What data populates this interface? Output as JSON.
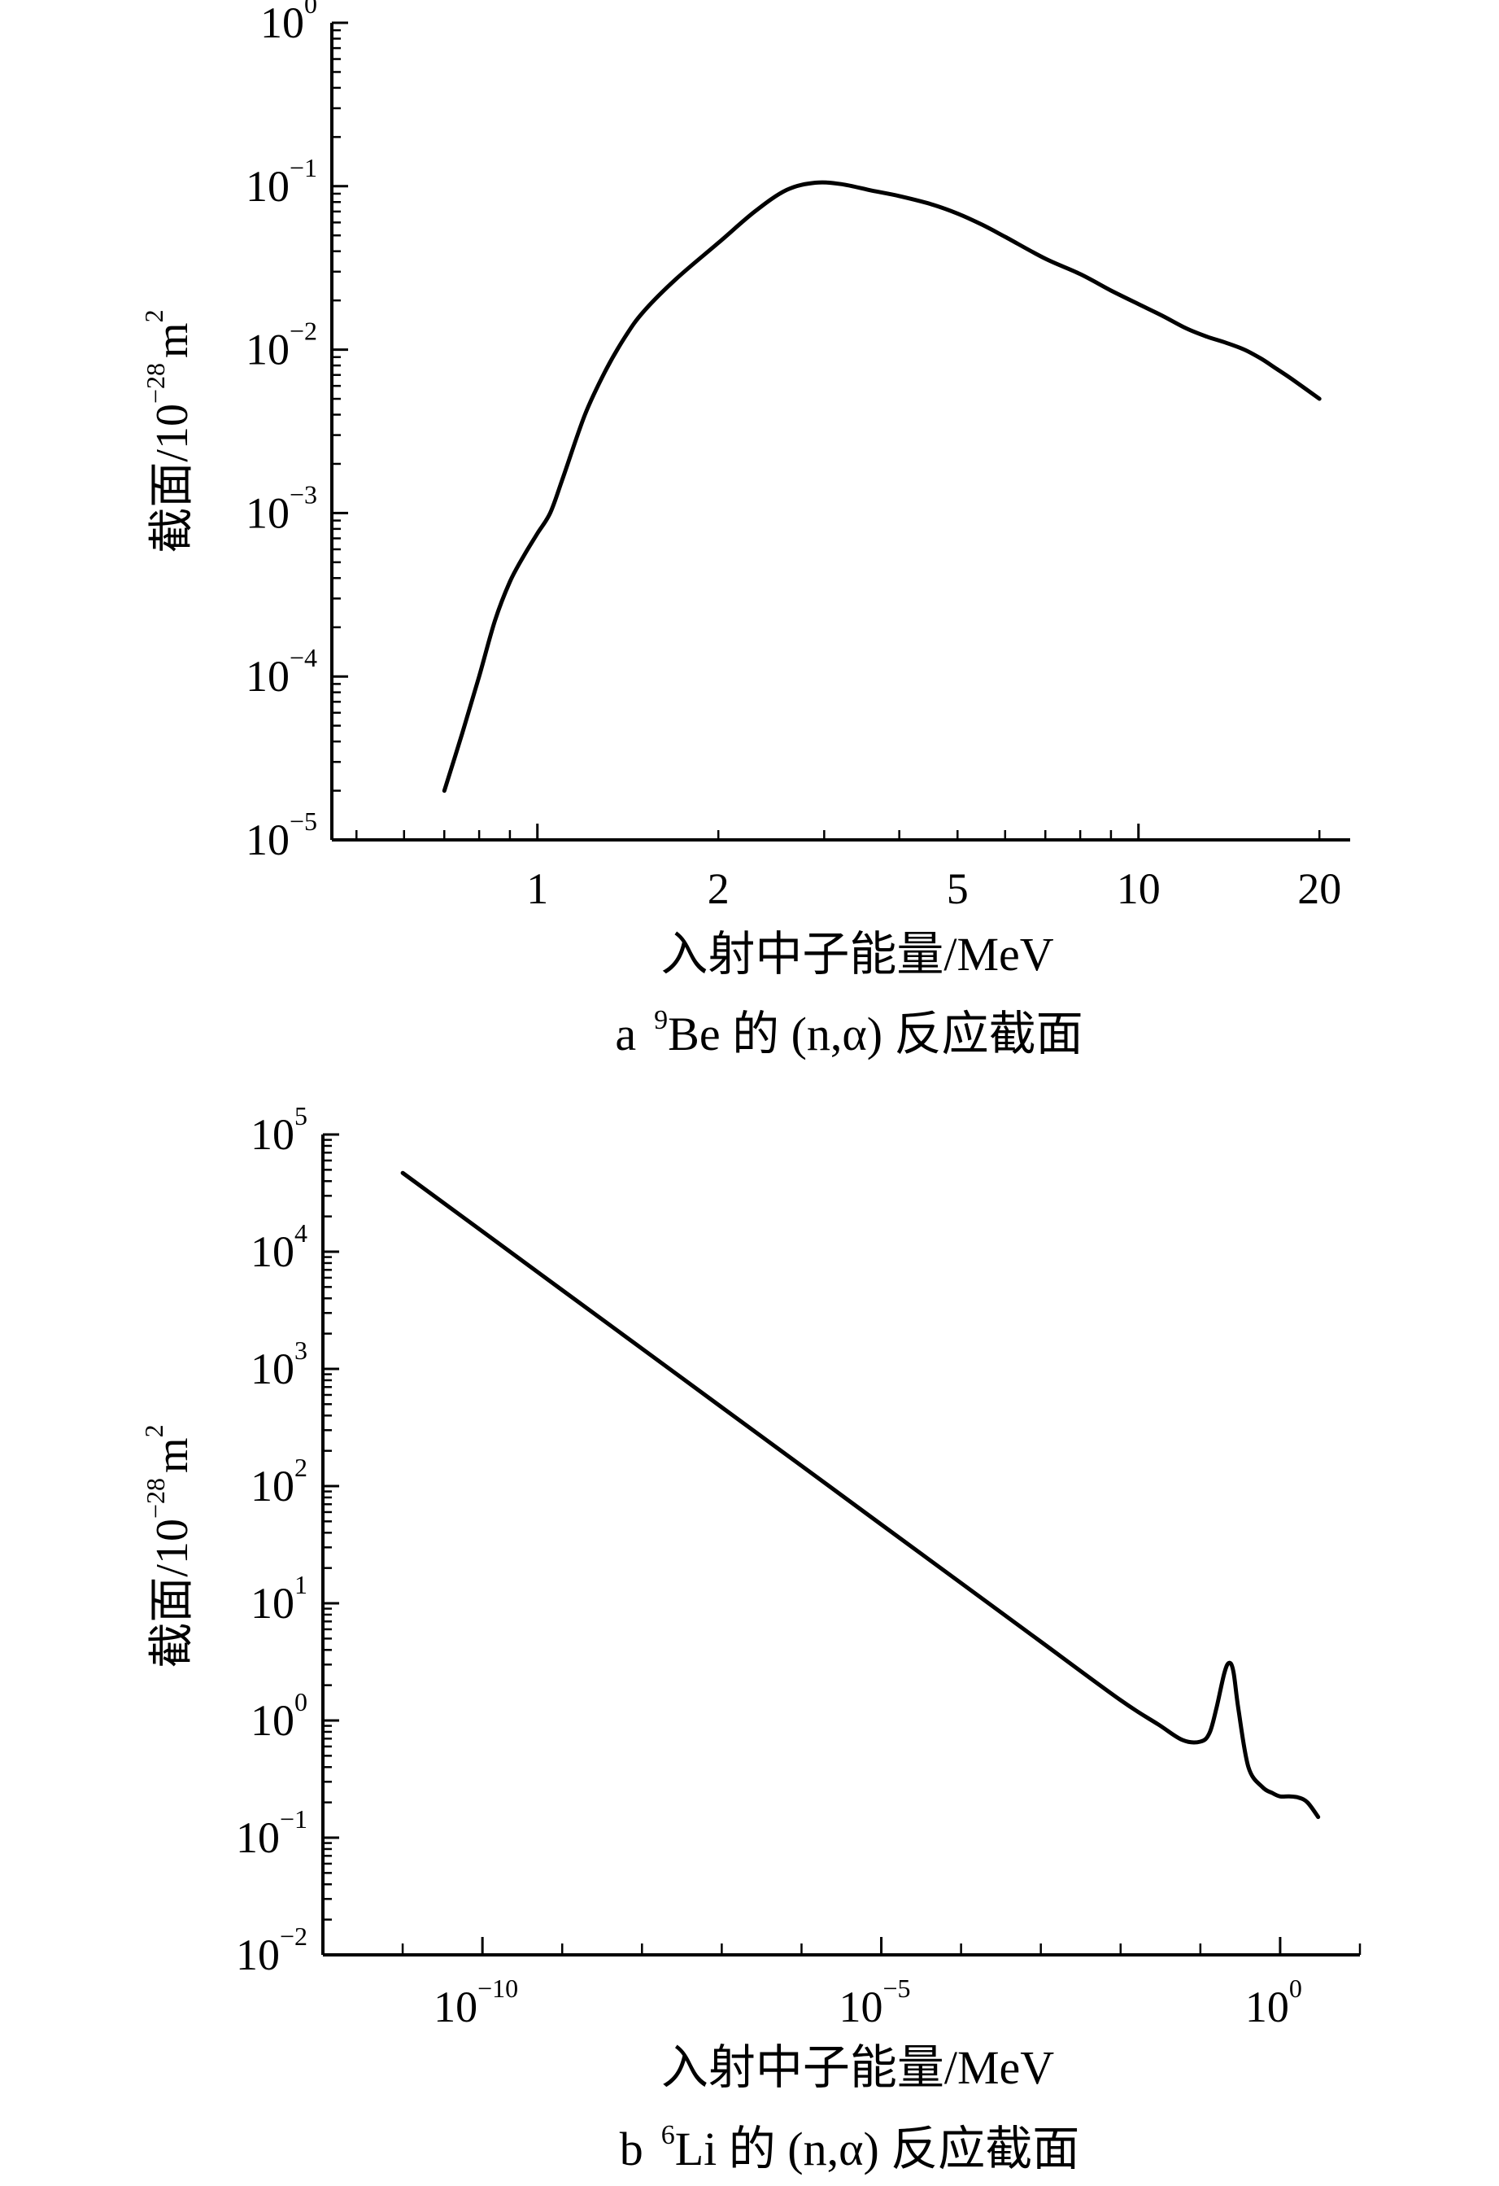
{
  "chart_data": [
    {
      "panel": "a",
      "type": "line",
      "caption_letter": "a",
      "caption_sup": "9",
      "caption_text": "Be 的 (n,α) 反应截面",
      "xlabel": "入射中子能量/MeV",
      "ylabel_main": "截面/10",
      "ylabel_exp": "−28",
      "ylabel_unit": "m",
      "ylabel_unit_exp": "2",
      "x_scale": "log",
      "y_scale": "log",
      "xlim": [
        0.455,
        22.5
      ],
      "ylim": [
        1e-05,
        1
      ],
      "grid": false,
      "x_tick_labels": [
        {
          "value": 1,
          "label": "1"
        },
        {
          "value": 2,
          "label": "2"
        },
        {
          "value": 5,
          "label": "5"
        },
        {
          "value": 10,
          "label": "10"
        },
        {
          "value": 20,
          "label": "20"
        }
      ],
      "y_tick_labels": [
        {
          "value": 1,
          "base": "10",
          "exp": "0"
        },
        {
          "value": 0.1,
          "base": "10",
          "exp": "−1"
        },
        {
          "value": 0.01,
          "base": "10",
          "exp": "−2"
        },
        {
          "value": 0.001,
          "base": "10",
          "exp": "−3"
        },
        {
          "value": 0.0001,
          "base": "10",
          "exp": "−4"
        },
        {
          "value": 1e-05,
          "base": "10",
          "exp": "−5"
        }
      ],
      "series": [
        {
          "x": [
            0.7,
            0.75,
            0.8,
            0.85,
            0.9,
            0.95,
            1.0,
            1.05,
            1.1,
            1.2,
            1.3,
            1.4,
            1.5,
            1.7,
            2.0,
            2.3,
            2.6,
            2.9,
            3.2,
            3.6,
            4.0,
            4.5,
            5.0,
            5.5,
            6.0,
            7.0,
            8.0,
            9.0,
            10.0,
            11.0,
            12.0,
            13.0,
            14.0,
            15.0,
            16.0,
            17.0,
            18.0,
            20.0
          ],
          "y": [
            2e-05,
            4.5e-05,
            0.0001,
            0.00022,
            0.00038,
            0.00055,
            0.00075,
            0.001,
            0.0016,
            0.004,
            0.0075,
            0.012,
            0.017,
            0.027,
            0.045,
            0.07,
            0.095,
            0.105,
            0.103,
            0.094,
            0.087,
            0.078,
            0.068,
            0.058,
            0.049,
            0.036,
            0.029,
            0.023,
            0.019,
            0.016,
            0.0135,
            0.012,
            0.011,
            0.01,
            0.0088,
            0.0076,
            0.0066,
            0.005
          ]
        }
      ]
    },
    {
      "panel": "b",
      "type": "line",
      "caption_letter": "b",
      "caption_sup": "6",
      "caption_text": "Li 的 (n,α) 反应截面",
      "xlabel": "入射中子能量/MeV",
      "ylabel_main": "截面/10",
      "ylabel_exp": "−28",
      "ylabel_unit": "m",
      "ylabel_unit_exp": "2",
      "x_scale": "log",
      "y_scale": "log",
      "xlim": [
        1e-12,
        10
      ],
      "ylim": [
        0.01,
        100000
      ],
      "grid": false,
      "x_tick_labels": [
        {
          "value": 1e-10,
          "base": "10",
          "exp": "−10"
        },
        {
          "value": 1e-05,
          "base": "10",
          "exp": "−5"
        },
        {
          "value": 1,
          "base": "10",
          "exp": "0"
        }
      ],
      "y_tick_labels": [
        {
          "value": 100000,
          "base": "10",
          "exp": "5"
        },
        {
          "value": 10000,
          "base": "10",
          "exp": "4"
        },
        {
          "value": 1000,
          "base": "10",
          "exp": "3"
        },
        {
          "value": 100,
          "base": "10",
          "exp": "2"
        },
        {
          "value": 10,
          "base": "10",
          "exp": "1"
        },
        {
          "value": 1,
          "base": "10",
          "exp": "0"
        },
        {
          "value": 0.1,
          "base": "10",
          "exp": "−1"
        },
        {
          "value": 0.01,
          "base": "10",
          "exp": "−2"
        }
      ],
      "series": [
        {
          "x": [
            1e-11,
            1e-10,
            1e-09,
            1e-08,
            1e-07,
            1e-06,
            1e-05,
            0.0001,
            0.001,
            0.01,
            0.03,
            0.06,
            0.1,
            0.13,
            0.16,
            0.2,
            0.23,
            0.26,
            0.3,
            0.4,
            0.6,
            0.8,
            1.0,
            1.3,
            1.7,
            2.2,
            3.0
          ],
          "y": [
            47000,
            14900,
            4700,
            1490,
            470,
            149,
            47,
            14.9,
            4.7,
            1.49,
            0.92,
            0.68,
            0.66,
            0.78,
            1.3,
            2.55,
            3.1,
            2.6,
            1.25,
            0.4,
            0.27,
            0.24,
            0.225,
            0.225,
            0.22,
            0.2,
            0.15
          ]
        }
      ]
    }
  ]
}
